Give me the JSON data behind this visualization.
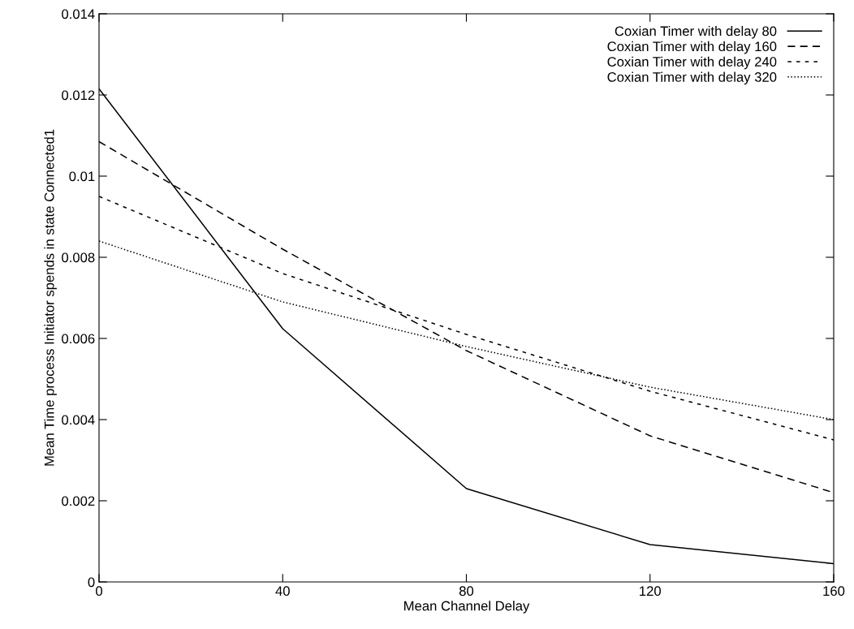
{
  "chart_data": {
    "type": "line",
    "xlabel": "Mean Channel Delay",
    "ylabel": "Mean Time process Initiator spends in state Connected1",
    "x": [
      0,
      40,
      80,
      120,
      160
    ],
    "series": [
      {
        "name": "Coxian Timer with delay 80",
        "color": "#000000",
        "line_style": "solid",
        "values": [
          0.01215,
          0.00624,
          0.0023,
          0.00092,
          0.00045
        ]
      },
      {
        "name": "Coxian Timer with delay 160",
        "color": "#000000",
        "line_style": "dashed",
        "values": [
          0.01085,
          0.0082,
          0.0057,
          0.0036,
          0.0022
        ]
      },
      {
        "name": "Coxian Timer with delay 240",
        "color": "#000000",
        "line_style": "dashed",
        "values": [
          0.0095,
          0.0076,
          0.0061,
          0.0047,
          0.0035
        ]
      },
      {
        "name": "Coxian Timer with delay 320",
        "color": "#000000",
        "line_style": "dotted",
        "values": [
          0.0084,
          0.0069,
          0.0058,
          0.0048,
          0.004
        ]
      }
    ],
    "xlim": [
      0,
      160
    ],
    "xticks": [
      0,
      40,
      80,
      120,
      160
    ],
    "ylim": [
      0,
      0.014
    ],
    "yticks": [
      0,
      0.002,
      0.004,
      0.006,
      0.008,
      0.01,
      0.012,
      0.014
    ],
    "grid": false,
    "legend": "top right",
    "marker": "none"
  }
}
